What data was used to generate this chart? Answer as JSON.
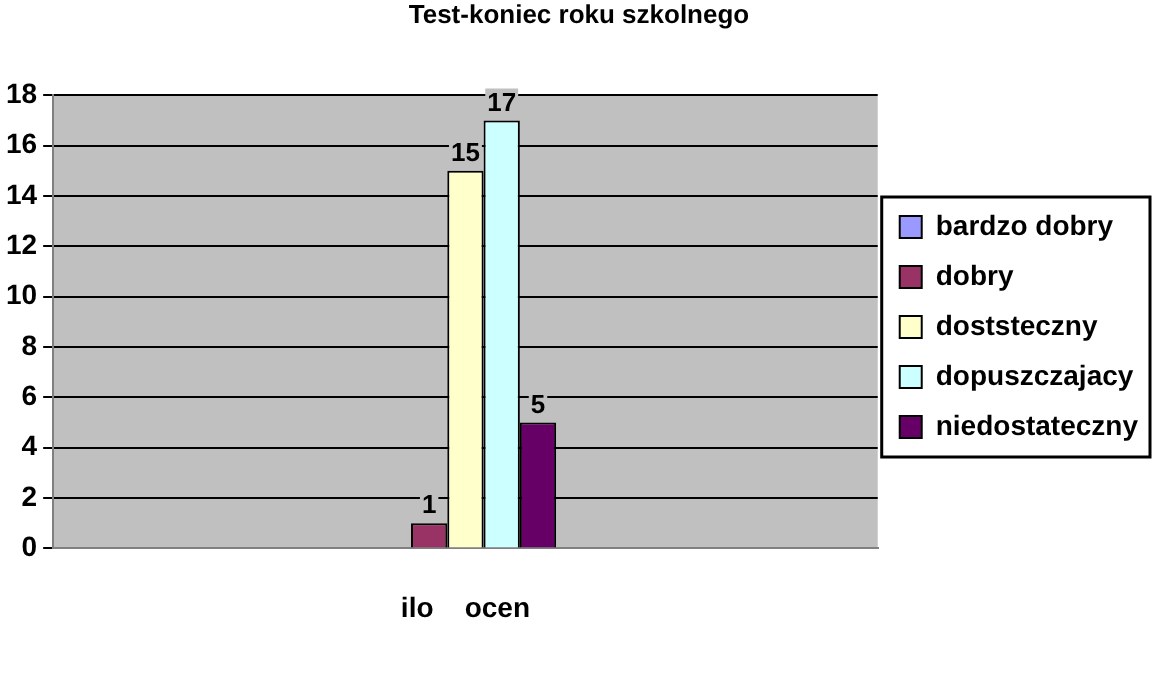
{
  "chart_data": {
    "type": "bar",
    "title": "Test-koniec roku szkolnego",
    "categories": [
      "ilo    ocen"
    ],
    "series": [
      {
        "name": "bardzo dobry",
        "color": "#9999ff",
        "values": [
          0
        ],
        "value_labels": [
          null
        ]
      },
      {
        "name": "dobry",
        "color": "#993366",
        "values": [
          1
        ],
        "value_labels": [
          "1"
        ]
      },
      {
        "name": "doststeczny",
        "color": "#ffffcc",
        "values": [
          15
        ],
        "value_labels": [
          "15"
        ]
      },
      {
        "name": "dopuszczajacy",
        "color": "#ccffff",
        "values": [
          17
        ],
        "value_labels": [
          "17"
        ]
      },
      {
        "name": "niedostateczny",
        "color": "#660066",
        "values": [
          5
        ],
        "value_labels": [
          "5"
        ]
      }
    ],
    "ylim": [
      0,
      18
    ],
    "yticks": [
      0,
      2,
      4,
      6,
      8,
      10,
      12,
      14,
      16,
      18
    ],
    "grid": "y",
    "legend": "right"
  }
}
